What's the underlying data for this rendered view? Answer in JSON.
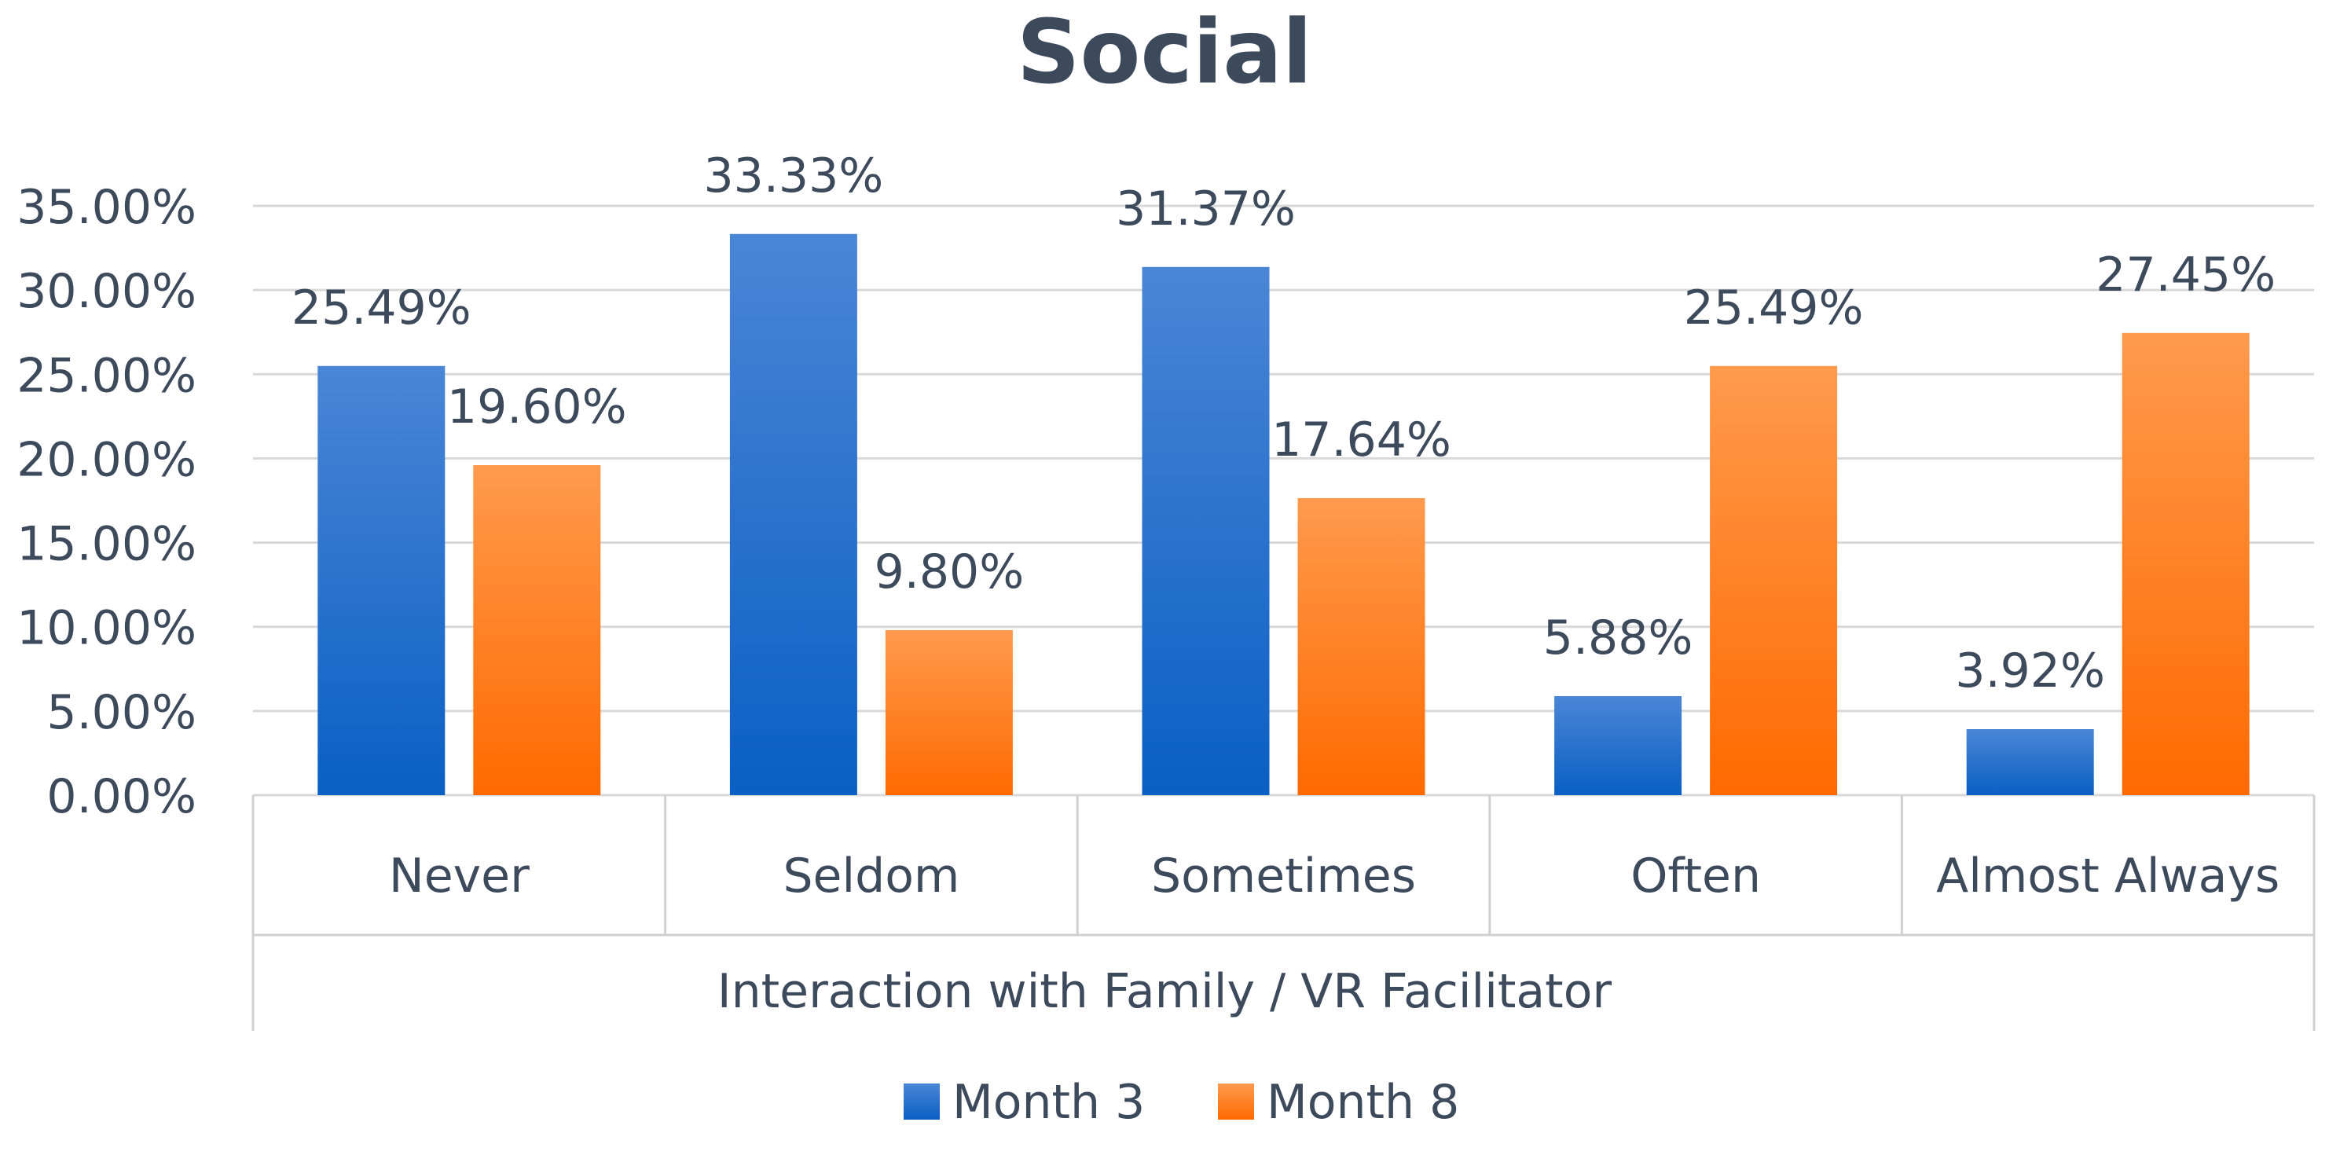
{
  "chart_data": {
    "type": "bar",
    "title": "Social",
    "xlabel": "Interaction with Family / VR Facilitator",
    "ylabel": "",
    "categories": [
      "Never",
      "Seldom",
      "Sometimes",
      "Often",
      "Almost Always"
    ],
    "series": [
      {
        "name": "Month 3",
        "values": [
          25.49,
          33.33,
          31.37,
          5.88,
          3.92
        ],
        "labels": [
          "25.49%",
          "33.33%",
          "31.37%",
          "5.88%",
          "3.92%"
        ],
        "color_top": "#4a86d6",
        "color_bottom": "#0a5fc4"
      },
      {
        "name": "Month 8",
        "values": [
          19.6,
          9.8,
          17.64,
          25.49,
          27.45
        ],
        "labels": [
          "19.60%",
          "9.80%",
          "17.64%",
          "25.49%",
          "27.45%"
        ],
        "color_top": "#ff9a4d",
        "color_bottom": "#ff6a00"
      }
    ],
    "ylim": [
      0,
      35
    ],
    "yticks": [
      0,
      5,
      10,
      15,
      20,
      25,
      30,
      35
    ],
    "ytick_labels": [
      "0.00%",
      "5.00%",
      "10.00%",
      "15.00%",
      "20.00%",
      "25.00%",
      "30.00%",
      "35.00%"
    ],
    "grid": true,
    "legend_position": "bottom-center",
    "colors": {
      "text": "#3d4a5c",
      "title": "#3d4a5c",
      "grid": "#d9d9d9",
      "axis": "#d0d0d0"
    }
  }
}
